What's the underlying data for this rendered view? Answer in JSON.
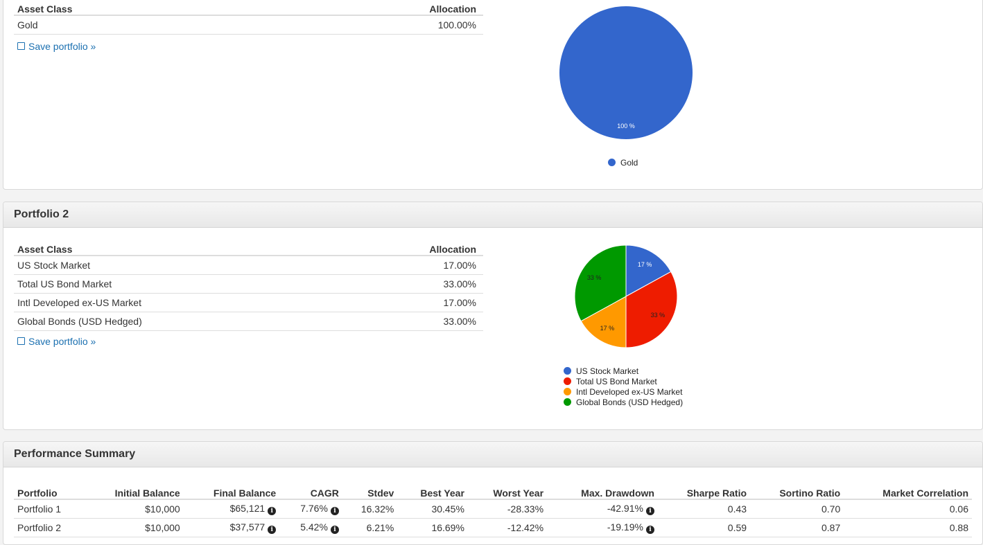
{
  "portfolio1": {
    "table": {
      "col_asset": "Asset Class",
      "col_alloc": "Allocation",
      "rows": [
        {
          "asset": "Gold",
          "allocation": "100.00%"
        }
      ]
    },
    "save_label": "Save portfolio »",
    "chart_data": {
      "type": "pie",
      "categories": [
        "Gold"
      ],
      "values": [
        100
      ],
      "slice_labels": [
        "100 %"
      ],
      "colors": [
        "#3366cc"
      ],
      "legend_position": "bottom"
    }
  },
  "portfolio2": {
    "title": "Portfolio 2",
    "table": {
      "col_asset": "Asset Class",
      "col_alloc": "Allocation",
      "rows": [
        {
          "asset": "US Stock Market",
          "allocation": "17.00%"
        },
        {
          "asset": "Total US Bond Market",
          "allocation": "33.00%"
        },
        {
          "asset": "Intl Developed ex-US Market",
          "allocation": "17.00%"
        },
        {
          "asset": "Global Bonds (USD Hedged)",
          "allocation": "33.00%"
        }
      ]
    },
    "save_label": "Save portfolio »",
    "chart_data": {
      "type": "pie",
      "categories": [
        "US Stock Market",
        "Total US Bond Market",
        "Intl Developed ex-US Market",
        "Global Bonds (USD Hedged)"
      ],
      "values": [
        17,
        33,
        17,
        33
      ],
      "slice_labels": [
        "17 %",
        "33 %",
        "17 %",
        "33 %"
      ],
      "colors": [
        "#3366cc",
        "#ee1c00",
        "#ff9900",
        "#009900"
      ],
      "legend_position": "bottom"
    }
  },
  "performance": {
    "title": "Performance Summary",
    "headers": [
      "Portfolio",
      "Initial Balance",
      "Final Balance",
      "CAGR",
      "Stdev",
      "Best Year",
      "Worst Year",
      "Max. Drawdown",
      "Sharpe Ratio",
      "Sortino Ratio",
      "Market Correlation"
    ],
    "info_icon": "info-circle-icon",
    "rows": [
      {
        "portfolio": "Portfolio 1",
        "initial": "$10,000",
        "final": "$65,121",
        "cagr": "7.76%",
        "stdev": "16.32%",
        "best": "30.45%",
        "worst": "-28.33%",
        "drawdown": "-42.91%",
        "sharpe": "0.43",
        "sortino": "0.70",
        "correlation": "0.06"
      },
      {
        "portfolio": "Portfolio 2",
        "initial": "$10,000",
        "final": "$37,577",
        "cagr": "5.42%",
        "stdev": "6.21%",
        "best": "16.69%",
        "worst": "-12.42%",
        "drawdown": "-19.19%",
        "sharpe": "0.59",
        "sortino": "0.87",
        "correlation": "0.88"
      }
    ]
  }
}
